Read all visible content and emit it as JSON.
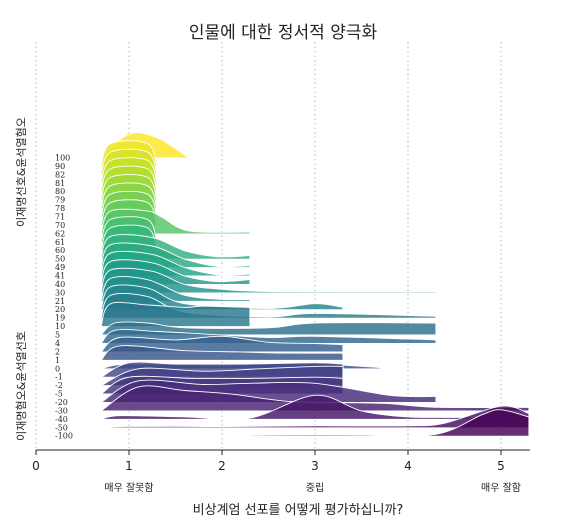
{
  "chart_data": {
    "type": "ridgeline",
    "title": "인물에 대한 정서적 양극화",
    "xlabel": "비상계엄 선포를 어떻게 평가하십니까?",
    "xlim": [
      0,
      5.3
    ],
    "x_ticks": [
      0,
      1,
      2,
      3,
      4,
      5
    ],
    "x_category_labels": [
      {
        "x": 1,
        "label": "매우 잘못함"
      },
      {
        "x": 3,
        "label": "중립"
      },
      {
        "x": 5,
        "label": "매우 잘함"
      }
    ],
    "grid": "vertical-dotted",
    "group_labels": {
      "top": "이재명선호&윤석열혐오",
      "bottom": "이재명혐오&윤석열선호"
    },
    "color_scale": [
      "#fde725",
      "#b5de2b",
      "#6ece58",
      "#35b779",
      "#1f9e89",
      "#26828e",
      "#31688e",
      "#3e4989",
      "#482878",
      "#440154"
    ],
    "series": [
      {
        "name": "100",
        "curve": [
          [
            0.7,
            0
          ],
          [
            1.0,
            1.0
          ],
          [
            1.3,
            0.85
          ],
          [
            1.65,
            0
          ]
        ]
      },
      {
        "name": "90",
        "curve": [
          [
            0.7,
            0
          ],
          [
            0.8,
            0.95
          ],
          [
            1.2,
            0.95
          ],
          [
            1.3,
            0
          ]
        ]
      },
      {
        "name": "82",
        "curve": [
          [
            0.7,
            0
          ],
          [
            0.8,
            0.95
          ],
          [
            1.2,
            0.95
          ],
          [
            1.3,
            0
          ]
        ]
      },
      {
        "name": "81",
        "curve": [
          [
            0.7,
            0
          ],
          [
            0.8,
            0.95
          ],
          [
            1.2,
            0.95
          ],
          [
            1.3,
            0
          ]
        ]
      },
      {
        "name": "80",
        "curve": [
          [
            0.7,
            0
          ],
          [
            0.8,
            0.95
          ],
          [
            1.2,
            0.95
          ],
          [
            1.3,
            0
          ]
        ]
      },
      {
        "name": "79",
        "curve": [
          [
            0.7,
            0
          ],
          [
            0.8,
            0.95
          ],
          [
            1.2,
            0.95
          ],
          [
            1.3,
            0
          ]
        ]
      },
      {
        "name": "78",
        "curve": [
          [
            0.7,
            0
          ],
          [
            0.8,
            0.95
          ],
          [
            1.2,
            0.95
          ],
          [
            1.3,
            0
          ]
        ]
      },
      {
        "name": "71",
        "curve": [
          [
            0.7,
            0
          ],
          [
            0.8,
            0.95
          ],
          [
            1.2,
            0.95
          ],
          [
            1.3,
            0
          ]
        ]
      },
      {
        "name": "70",
        "curve": [
          [
            0.7,
            0
          ],
          [
            0.8,
            0.95
          ],
          [
            1.2,
            0.95
          ],
          [
            1.3,
            0
          ]
        ]
      },
      {
        "name": "62",
        "curve": [
          [
            0.7,
            0
          ],
          [
            0.8,
            0.95
          ],
          [
            1.2,
            0.95
          ],
          [
            1.35,
            0.7
          ],
          [
            1.65,
            0.12
          ],
          [
            2.3,
            0.08
          ]
        ]
      },
      {
        "name": "61",
        "curve": [
          [
            0.7,
            0
          ],
          [
            0.8,
            0.95
          ],
          [
            1.2,
            0.95
          ],
          [
            1.3,
            0
          ]
        ]
      },
      {
        "name": "60",
        "curve": [
          [
            0.7,
            0
          ],
          [
            0.8,
            0.95
          ],
          [
            1.2,
            0.95
          ],
          [
            1.3,
            0
          ]
        ]
      },
      {
        "name": "50",
        "curve": [
          [
            0.7,
            0
          ],
          [
            0.8,
            0.95
          ],
          [
            1.25,
            0.9
          ],
          [
            1.6,
            0.35
          ],
          [
            1.95,
            0.1
          ],
          [
            2.3,
            0.15
          ]
        ]
      },
      {
        "name": "49",
        "curve": [
          [
            0.7,
            0
          ],
          [
            0.8,
            0.95
          ],
          [
            1.25,
            0.9
          ],
          [
            1.6,
            0.35
          ],
          [
            1.95,
            0.05
          ],
          [
            2.3,
            0.08
          ]
        ]
      },
      {
        "name": "41",
        "curve": [
          [
            0.7,
            0
          ],
          [
            0.8,
            0.95
          ],
          [
            1.25,
            0.9
          ],
          [
            1.6,
            0.35
          ],
          [
            1.95,
            0.05
          ],
          [
            2.3,
            0.08
          ]
        ]
      },
      {
        "name": "40",
        "curve": [
          [
            0.7,
            0
          ],
          [
            0.8,
            0.95
          ],
          [
            1.25,
            0.9
          ],
          [
            1.6,
            0.35
          ],
          [
            1.95,
            0.12
          ],
          [
            2.3,
            0.2
          ]
        ]
      },
      {
        "name": "30",
        "curve": [
          [
            0.7,
            0
          ],
          [
            0.8,
            0.95
          ],
          [
            1.25,
            0.9
          ],
          [
            1.6,
            0.35
          ],
          [
            2.0,
            0.15
          ],
          [
            2.6,
            0.05
          ],
          [
            4.3,
            0.05
          ]
        ]
      },
      {
        "name": "21",
        "curve": [
          [
            0.7,
            0
          ],
          [
            0.8,
            0.95
          ],
          [
            1.2,
            0.9
          ],
          [
            1.6,
            0.25
          ],
          [
            2.0,
            0.08
          ],
          [
            2.3,
            0.08
          ]
        ]
      },
      {
        "name": "20",
        "curve": [
          [
            0.7,
            0
          ],
          [
            0.8,
            0.95
          ],
          [
            1.2,
            0.9
          ],
          [
            1.6,
            0.25
          ],
          [
            2.5,
            0.05
          ],
          [
            3.0,
            0.25
          ],
          [
            3.3,
            0.1
          ]
        ]
      },
      {
        "name": "19",
        "curve": [
          [
            0.7,
            0
          ],
          [
            0.8,
            0.95
          ],
          [
            1.2,
            0.9
          ],
          [
            1.6,
            0.25
          ],
          [
            2.5,
            0.05
          ],
          [
            3.0,
            0.2
          ],
          [
            4.3,
            0.08
          ]
        ]
      },
      {
        "name": "10",
        "curve": [
          [
            0.7,
            0
          ],
          [
            0.8,
            0.95
          ],
          [
            1.2,
            0.9
          ],
          [
            1.6,
            0.8
          ],
          [
            1.8,
            0.85
          ],
          [
            2.3,
            0.8
          ]
        ]
      },
      {
        "name": "5",
        "curve": [
          [
            0.7,
            0
          ],
          [
            0.85,
            0.5
          ],
          [
            1.2,
            0.5
          ],
          [
            1.6,
            0.3
          ],
          [
            2.5,
            0.3
          ],
          [
            3.0,
            0.5
          ],
          [
            4.3,
            0.5
          ]
        ]
      },
      {
        "name": "4",
        "curve": [
          [
            0.7,
            0
          ],
          [
            0.85,
            0.55
          ],
          [
            1.3,
            0.5
          ],
          [
            1.8,
            0.4
          ],
          [
            2.5,
            0.25
          ],
          [
            3.0,
            0.3
          ],
          [
            4.3,
            0.15
          ]
        ]
      },
      {
        "name": "2",
        "curve": [
          [
            0.7,
            0
          ],
          [
            0.9,
            0.6
          ],
          [
            1.5,
            0.5
          ],
          [
            2.0,
            0.65
          ],
          [
            2.5,
            0.4
          ],
          [
            3.0,
            0.35
          ],
          [
            3.3,
            0.3
          ]
        ]
      },
      {
        "name": "1",
        "curve": [
          [
            0.7,
            0
          ],
          [
            0.9,
            0.6
          ],
          [
            1.6,
            0.4
          ],
          [
            2.2,
            0.35
          ],
          [
            2.6,
            0.3
          ],
          [
            3.3,
            0.3
          ]
        ]
      },
      {
        "name": "0",
        "curve": [
          [
            0.7,
            0
          ],
          [
            1.0,
            0.2
          ],
          [
            2.0,
            0.15
          ],
          [
            3.0,
            0.25
          ],
          [
            3.3,
            0.15
          ],
          [
            3.7,
            0.05
          ]
        ]
      },
      {
        "name": "-1",
        "curve": [
          [
            0.7,
            0
          ],
          [
            1.0,
            0.6
          ],
          [
            1.5,
            0.55
          ],
          [
            2.2,
            0.55
          ],
          [
            3.0,
            0.6
          ],
          [
            3.3,
            0.55
          ]
        ]
      },
      {
        "name": "-2",
        "curve": [
          [
            0.7,
            0
          ],
          [
            1.1,
            0.7
          ],
          [
            1.8,
            0.6
          ],
          [
            2.4,
            0.7
          ],
          [
            3.0,
            0.8
          ],
          [
            3.3,
            0.8
          ]
        ]
      },
      {
        "name": "-5",
        "curve": [
          [
            0.7,
            0
          ],
          [
            1.0,
            0.7
          ],
          [
            1.7,
            0.65
          ],
          [
            2.3,
            0.65
          ],
          [
            3.0,
            0.7
          ],
          [
            3.3,
            0.65
          ]
        ]
      },
      {
        "name": "-20",
        "curve": [
          [
            0.7,
            0
          ],
          [
            1.1,
            0.9
          ],
          [
            1.8,
            0.75
          ],
          [
            2.3,
            0.8
          ],
          [
            3.0,
            0.8
          ],
          [
            3.8,
            0.3
          ],
          [
            4.3,
            0.25
          ]
        ]
      },
      {
        "name": "-30",
        "curve": [
          [
            0.7,
            0
          ],
          [
            1.1,
            1.0
          ],
          [
            1.6,
            0.85
          ],
          [
            2.1,
            0.7
          ],
          [
            2.7,
            0.4
          ],
          [
            3.3,
            0.35
          ],
          [
            3.8,
            0.3
          ],
          [
            4.3,
            0.15
          ],
          [
            5.3,
            0.15
          ]
        ]
      },
      {
        "name": "-40",
        "curve": [
          [
            0.7,
            0
          ],
          [
            0.9,
            0.15
          ],
          [
            1.6,
            0.1
          ],
          [
            2.3,
            0.05
          ],
          [
            3.0,
            1.0
          ],
          [
            3.5,
            0.35
          ],
          [
            4.0,
            0.1
          ],
          [
            4.6,
            0.08
          ],
          [
            5.3,
            0.05
          ]
        ]
      },
      {
        "name": "-50",
        "curve": [
          [
            0.7,
            0
          ],
          [
            0.9,
            0.05
          ],
          [
            1.5,
            0.06
          ],
          [
            2.0,
            0.05
          ],
          [
            3.0,
            0.08
          ],
          [
            4.0,
            0.08
          ],
          [
            4.4,
            0.2
          ],
          [
            5.0,
            0.9
          ],
          [
            5.3,
            0.6
          ]
        ]
      },
      {
        "name": "-100",
        "curve": [
          [
            1.7,
            0
          ],
          [
            2.5,
            0.05
          ],
          [
            3.5,
            0.05
          ],
          [
            4.3,
            0.08
          ],
          [
            4.8,
            0.9
          ],
          [
            5.0,
            1.1
          ],
          [
            5.3,
            0.8
          ]
        ]
      }
    ]
  }
}
